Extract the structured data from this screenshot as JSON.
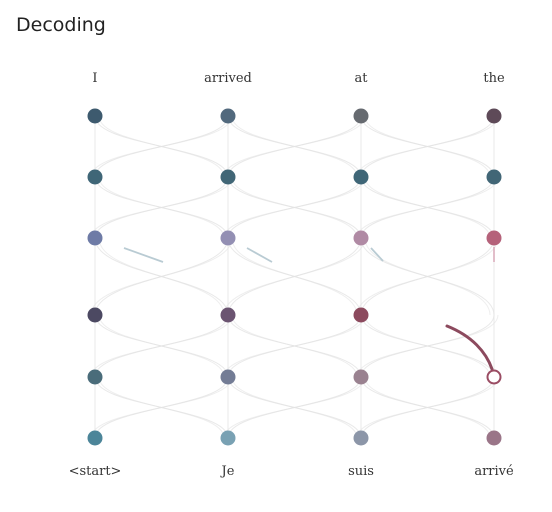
{
  "title": "Decoding",
  "source_words": [
    "I",
    "arrived",
    "at",
    "the"
  ],
  "target_words": [
    "<start>",
    "Je",
    "suis",
    "arrivé"
  ],
  "node_colors": [
    [
      "#3d5a6e",
      "#52697d",
      "#666a70",
      "#5e4a58"
    ],
    [
      "#3f6677",
      "#416676",
      "#3f6677",
      "#416676"
    ],
    [
      "#6e7ba6",
      "#938fb3",
      "#b08aa4",
      "#b5627a"
    ],
    [
      "#4c4962",
      "#6b5471",
      "#8c4a5e",
      null
    ],
    [
      "#4a6c7a",
      "#737c95",
      "#9a8290",
      "#ffffff"
    ],
    [
      "#4c8599",
      "#79a1b3",
      "#8c96a8",
      "#9a7588"
    ]
  ],
  "colors": {
    "connection": "#b9cbd3",
    "active_path": "#8c4a5e",
    "current_ring": "#9a4c63",
    "faint_mesh": "#e3e3e3"
  }
}
